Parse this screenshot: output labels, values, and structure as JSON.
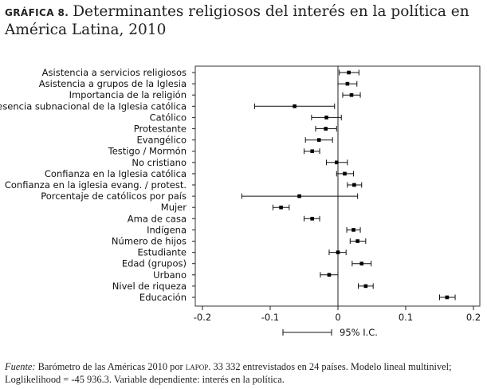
{
  "title": {
    "label": "GRÁFICA 8.",
    "text": "Determinantes religiosos del interés en la política en América Latina, 2010"
  },
  "source": {
    "label": "Fuente:",
    "text_a": "Barómetro de las Américas 2010 por",
    "lapop": "lapop",
    "text_b": ". 33 332 entrevistados en 24 países. Modelo lineal multinivel; Loglikelihood = -45 936.3. Variable dependiente: interés en la política."
  },
  "chart_data": {
    "type": "scatter",
    "orientation": "horizontal coefficient plot with error bars",
    "categories": [
      "Asistencia a servicios religiosos",
      "Asistencia a grupos de la Iglesia",
      "Importancia de la religión",
      "Presencia subnacional de la Iglesia católica",
      "Católico",
      "Protestante",
      "Evangélico",
      "Testigo / Mormón",
      "No cristiano",
      "Confianza en la Iglesia católica",
      "Confianza  en la iglesia evang. / protest.",
      "Porcentaje de católicos por país",
      "Mujer",
      "Ama de casa",
      "Indígena",
      "Número de hijos",
      "Estudiante",
      "Edad (grupos)",
      "Urbano",
      "Nivel de riqueza",
      "Educación"
    ],
    "values": [
      0.016,
      0.014,
      0.02,
      -0.064,
      -0.017,
      -0.018,
      -0.028,
      -0.038,
      -0.002,
      0.01,
      0.024,
      -0.057,
      -0.084,
      -0.038,
      0.023,
      0.029,
      0.0,
      0.035,
      -0.013,
      0.041,
      0.161
    ],
    "ci_low": [
      0.002,
      0.0,
      0.007,
      -0.123,
      -0.039,
      -0.033,
      -0.048,
      -0.05,
      -0.017,
      -0.002,
      0.014,
      -0.142,
      -0.096,
      -0.05,
      0.013,
      0.018,
      -0.013,
      0.021,
      -0.026,
      0.03,
      0.15
    ],
    "ci_high": [
      0.031,
      0.028,
      0.033,
      -0.005,
      0.005,
      -0.002,
      -0.008,
      -0.027,
      0.014,
      0.023,
      0.035,
      0.029,
      -0.072,
      -0.027,
      0.033,
      0.041,
      0.012,
      0.049,
      0.0,
      0.052,
      0.173
    ],
    "xlim": [
      -0.2,
      0.2
    ],
    "xticks": [
      -0.2,
      -0.1,
      0,
      0.1,
      0.2
    ],
    "xtick_labels": [
      "-0.2",
      "-0.1",
      "0",
      "0.1",
      "0.2"
    ],
    "reference_line": 0,
    "legend": {
      "label": "95% I.C.",
      "placement": "bottom"
    },
    "grid": false
  }
}
